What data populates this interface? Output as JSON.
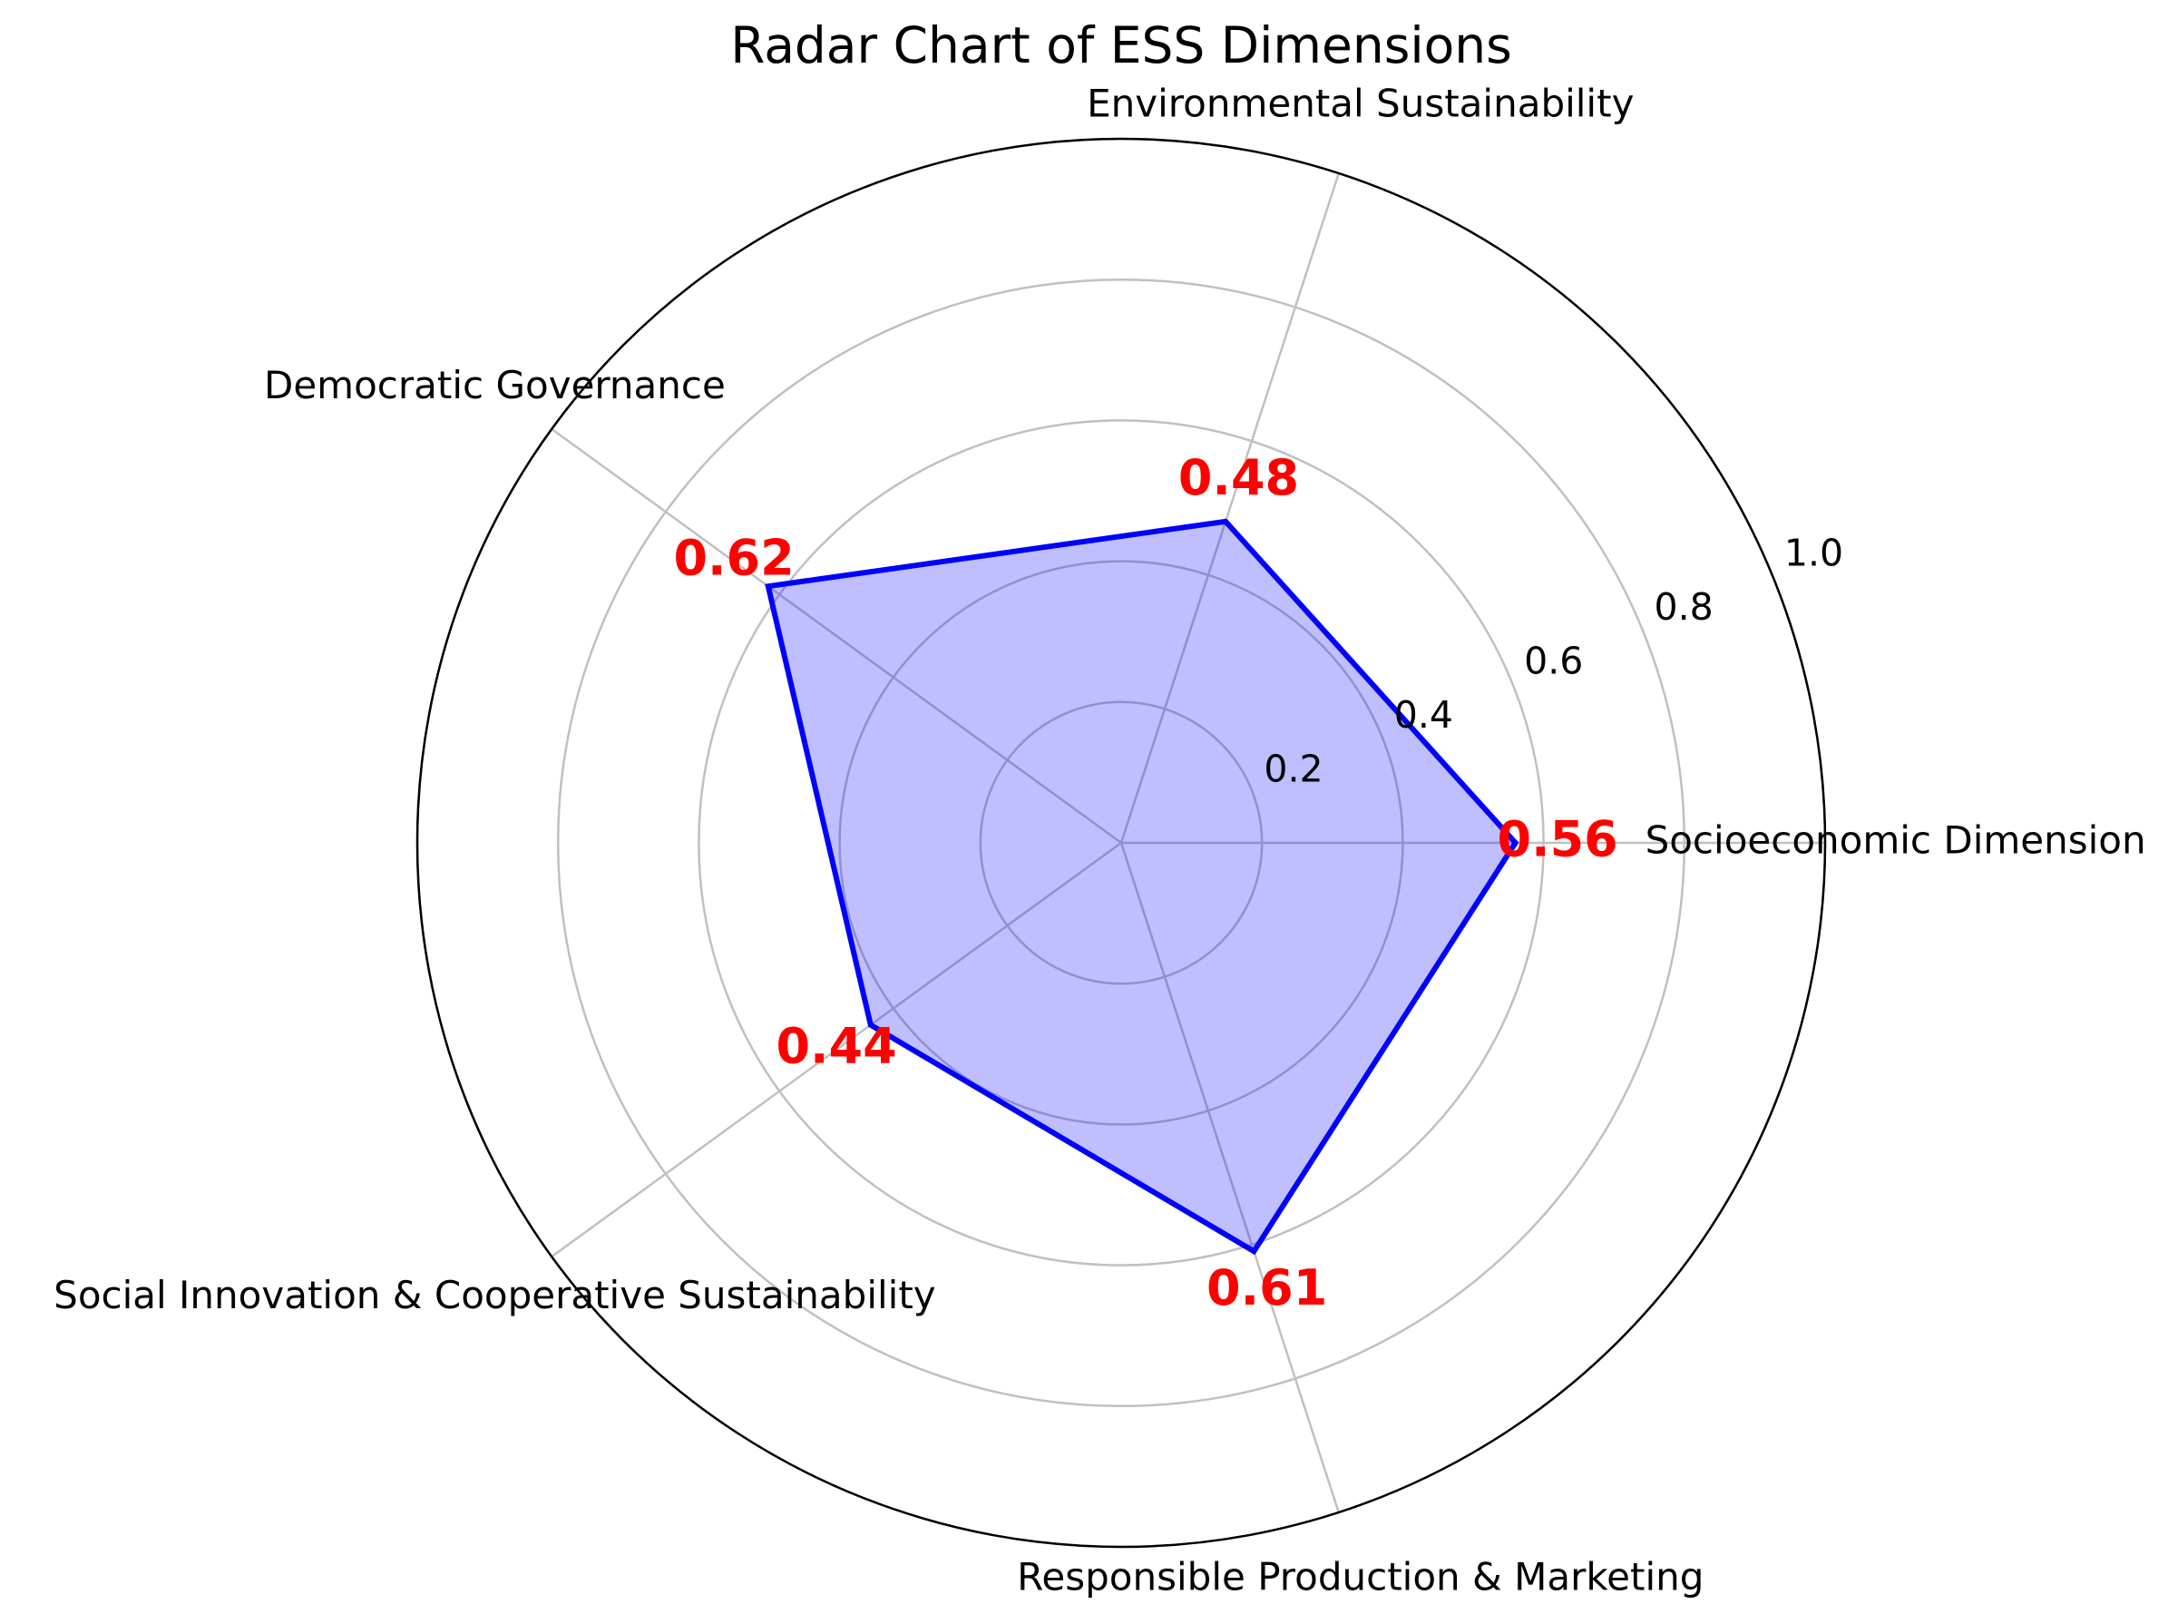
{
  "chart_data": {
    "type": "radar",
    "title": "Radar Chart of ESS Dimensions",
    "categories": [
      "Socioeconomic Dimension",
      "Environmental Sustainability",
      "Democratic Governance",
      "Social Innovation & Cooperative Sustainability",
      "Responsible Production & Marketing"
    ],
    "values": [
      0.56,
      0.48,
      0.62,
      0.44,
      0.61
    ],
    "color": "#0000ff",
    "value_label_color": "#ff0000",
    "ylim": [
      0,
      1.0
    ],
    "yticks": [
      0.2,
      0.4,
      0.6,
      0.8,
      {
        "value": 1.0,
        "label": "1.0"
      }
    ],
    "grid": true
  }
}
